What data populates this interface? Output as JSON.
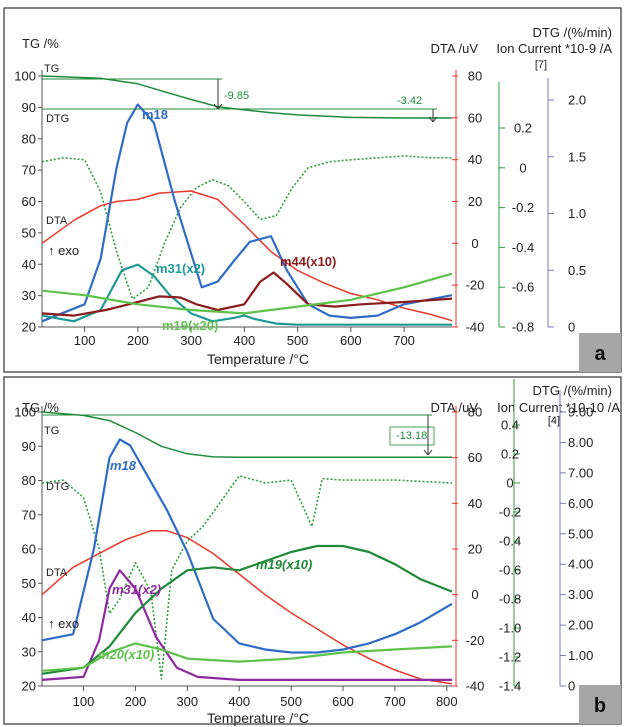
{
  "colors": {
    "tg": "#1f8a3a",
    "dtg": "#2e9e3e",
    "dta": "#e8392b",
    "m18": "#2f6cc6",
    "m31": "#1e9a96",
    "m44": "#8b1c1c",
    "m19_a": "#5cc24a",
    "m19_b": "#1f8a3a",
    "m31_b": "#8e2aa0",
    "m20": "#5cc24a",
    "badge": "#a6a6a6"
  },
  "chart_data": [
    {
      "type": "line",
      "panel": "a",
      "xlabel": "Temperature /°C",
      "xticks": [
        "100",
        "200",
        "300",
        "400",
        "500",
        "600",
        "700"
      ],
      "xlim": [
        20,
        790
      ],
      "tg_axis": {
        "label": "TG /%",
        "ticks": [
          "100",
          "90",
          "80",
          "70",
          "60",
          "50",
          "40",
          "30",
          "20"
        ],
        "ylim": [
          20,
          100
        ]
      },
      "dta_axis": {
        "label": "DTA /uV",
        "ticks": [
          "80",
          "60",
          "40",
          "20",
          "0",
          "-20",
          "-40"
        ],
        "ylim": [
          -40,
          80
        ]
      },
      "dtg_axis": {
        "label": "DTG /(%/min)",
        "ticks": [
          "0.2",
          "0",
          "-0.2",
          "-0.4",
          "-0.6",
          "-0.8"
        ],
        "ylim": [
          -0.8,
          0.2
        ]
      },
      "ion_axis": {
        "label": "Ion Current *10-9 /A",
        "bracket": "[7]",
        "ticks": [
          "2.0",
          "1.5",
          "1.0",
          "0.5",
          "0"
        ],
        "ylim": [
          0,
          2.0
        ]
      },
      "labels": {
        "tg": "TG",
        "dtg": "DTG",
        "dta": "DTA",
        "exo": "↑ exo"
      },
      "steps": [
        "-9.85",
        "-3.42"
      ],
      "badge": "a",
      "series": [
        {
          "name": "TG",
          "axis": "tg",
          "x": [
            20,
            130,
            200,
            260,
            300,
            350,
            400,
            450,
            500,
            600,
            700,
            790
          ],
          "values": [
            100,
            99.3,
            97.5,
            94.5,
            92.5,
            90.2,
            89.2,
            88.3,
            87.6,
            86.8,
            86.6,
            86.6
          ]
        },
        {
          "name": "DTG",
          "axis": "dtg",
          "dotted": true,
          "x": [
            20,
            60,
            100,
            130,
            160,
            190,
            220,
            250,
            280,
            310,
            340,
            370,
            400,
            430,
            460,
            490,
            520,
            560,
            600,
            650,
            700,
            750,
            790
          ],
          "values": [
            0.03,
            0.05,
            0.04,
            -0.12,
            -0.42,
            -0.66,
            -0.6,
            -0.38,
            -0.2,
            -0.1,
            -0.06,
            -0.09,
            -0.17,
            -0.26,
            -0.24,
            -0.1,
            0.0,
            0.03,
            0.04,
            0.05,
            0.06,
            0.05,
            0.05
          ]
        },
        {
          "name": "DTA",
          "axis": "dta",
          "x": [
            20,
            80,
            130,
            160,
            200,
            240,
            300,
            350,
            400,
            450,
            500,
            550,
            600,
            650,
            700,
            750,
            790
          ],
          "values": [
            0,
            11,
            18,
            20,
            21,
            24,
            25,
            21,
            9,
            -4,
            -13,
            -19,
            -24,
            -27,
            -31,
            -34,
            -37
          ]
        },
        {
          "name": "m18",
          "axis": "ion",
          "x": [
            20,
            100,
            130,
            160,
            180,
            200,
            230,
            270,
            320,
            350,
            380,
            410,
            450,
            480,
            520,
            560,
            600,
            650,
            700,
            790
          ],
          "values": [
            0.05,
            0.2,
            0.6,
            1.4,
            1.8,
            1.96,
            1.8,
            1.1,
            0.35,
            0.4,
            0.58,
            0.75,
            0.8,
            0.5,
            0.2,
            0.1,
            0.08,
            0.1,
            0.2,
            0.28
          ]
        },
        {
          "name": "m31(x2)",
          "axis": "ion",
          "x": [
            20,
            80,
            130,
            170,
            200,
            230,
            260,
            300,
            340,
            380,
            400,
            420,
            460,
            500,
            600,
            790
          ],
          "values": [
            0.1,
            0.05,
            0.15,
            0.5,
            0.55,
            0.45,
            0.28,
            0.12,
            0.05,
            0.08,
            0.1,
            0.07,
            0.03,
            0.02,
            0.02,
            0.02
          ]
        },
        {
          "name": "m44(x10)",
          "axis": "ion",
          "x": [
            20,
            80,
            140,
            200,
            240,
            280,
            310,
            350,
            400,
            430,
            455,
            480,
            520,
            570,
            620,
            700,
            790
          ],
          "values": [
            0.12,
            0.1,
            0.15,
            0.22,
            0.27,
            0.26,
            0.2,
            0.15,
            0.2,
            0.4,
            0.48,
            0.38,
            0.2,
            0.18,
            0.2,
            0.22,
            0.25
          ]
        },
        {
          "name": "m19(x20)",
          "axis": "ion",
          "x": [
            20,
            100,
            200,
            300,
            400,
            500,
            600,
            700,
            790
          ],
          "values": [
            0.32,
            0.28,
            0.2,
            0.15,
            0.12,
            0.18,
            0.24,
            0.35,
            0.47
          ]
        }
      ]
    },
    {
      "type": "line",
      "panel": "b",
      "xlabel": "Temperature /°C",
      "xticks": [
        "100",
        "200",
        "300",
        "400",
        "500",
        "600",
        "700",
        "800"
      ],
      "xlim": [
        20,
        810
      ],
      "tg_axis": {
        "label": "TG /%",
        "ticks": [
          "100",
          "90",
          "80",
          "70",
          "60",
          "50",
          "40",
          "30",
          "20"
        ],
        "ylim": [
          20,
          100
        ]
      },
      "dta_axis": {
        "label": "DTA /uV",
        "ticks": [
          "80",
          "60",
          "40",
          "20",
          "0",
          "-20",
          "-40"
        ],
        "ylim": [
          -40,
          80
        ]
      },
      "dtg_axis": {
        "label": "DTG /(%/min)",
        "ticks": [
          "0.4",
          "0.2",
          "0",
          "-0.2",
          "-0.4",
          "-0.6",
          "-0.8",
          "-1.0",
          "-1.2",
          "-1.4"
        ],
        "ylim": [
          -1.4,
          0.4
        ]
      },
      "ion_axis": {
        "label": "Ion Current *10-10 /A",
        "bracket": "[4]",
        "ticks": [
          "9.00",
          "8.00",
          "7.00",
          "6.00",
          "5.00",
          "4.00",
          "3.00",
          "2.00",
          "1.00",
          "0"
        ],
        "ylim": [
          0,
          9.0
        ]
      },
      "labels": {
        "tg": "TG",
        "dtg": "DTG",
        "dta": "DTA",
        "exo": "↑ exo"
      },
      "steps": [
        "-13.18"
      ],
      "badge": "b",
      "series": [
        {
          "name": "TG",
          "axis": "tg",
          "x": [
            20,
            100,
            150,
            200,
            250,
            300,
            350,
            400,
            500,
            600,
            700,
            810
          ],
          "values": [
            100,
            99,
            97.5,
            94,
            90,
            87.8,
            86.9,
            86.8,
            86.8,
            86.8,
            86.8,
            86.8
          ]
        },
        {
          "name": "DTG",
          "axis": "dtg",
          "dotted": true,
          "x": [
            20,
            60,
            100,
            130,
            150,
            170,
            200,
            230,
            250,
            270,
            300,
            330,
            360,
            380,
            400,
            450,
            500,
            540,
            560,
            600,
            700,
            810
          ],
          "values": [
            0.0,
            0.02,
            -0.1,
            -0.45,
            -0.9,
            -0.8,
            -0.55,
            -0.75,
            -1.35,
            -0.6,
            -0.4,
            -0.3,
            -0.15,
            -0.05,
            0.05,
            0.0,
            0.02,
            -0.3,
            0.03,
            0.02,
            0.02,
            0.0
          ]
        },
        {
          "name": "DTA",
          "axis": "dta",
          "x": [
            20,
            80,
            130,
            180,
            230,
            260,
            300,
            350,
            400,
            450,
            500,
            550,
            600,
            650,
            700,
            750,
            810
          ],
          "values": [
            0,
            12,
            18,
            24,
            28,
            28,
            25,
            18,
            9,
            0,
            -8,
            -15,
            -22,
            -28,
            -33,
            -37,
            -39
          ]
        },
        {
          "name": "m18",
          "axis": "ion",
          "x": [
            20,
            80,
            120,
            150,
            170,
            190,
            220,
            260,
            300,
            350,
            400,
            450,
            500,
            550,
            600,
            650,
            700,
            750,
            810
          ],
          "values": [
            1.5,
            1.7,
            4.5,
            7.5,
            8.1,
            7.9,
            7.0,
            5.8,
            4.4,
            2.2,
            1.4,
            1.2,
            1.1,
            1.1,
            1.2,
            1.4,
            1.7,
            2.1,
            2.7
          ]
        },
        {
          "name": "m31(x2)",
          "axis": "ion",
          "x": [
            20,
            100,
            130,
            150,
            170,
            200,
            240,
            280,
            320,
            400,
            500,
            810
          ],
          "values": [
            0.2,
            0.3,
            1.5,
            3.2,
            3.8,
            3.2,
            1.6,
            0.6,
            0.3,
            0.2,
            0.2,
            0.2
          ]
        },
        {
          "name": "m19(x10)",
          "axis": "ion",
          "x": [
            20,
            100,
            150,
            200,
            250,
            300,
            350,
            400,
            450,
            500,
            550,
            600,
            650,
            700,
            750,
            810
          ],
          "values": [
            0.4,
            0.6,
            1.3,
            2.4,
            3.2,
            3.8,
            3.9,
            3.8,
            4.1,
            4.4,
            4.6,
            4.6,
            4.4,
            4.0,
            3.5,
            3.1
          ]
        },
        {
          "name": "m20(x10)",
          "axis": "ion",
          "x": [
            20,
            100,
            150,
            200,
            250,
            300,
            400,
            500,
            600,
            700,
            810
          ],
          "values": [
            0.5,
            0.6,
            1.1,
            1.4,
            1.2,
            0.9,
            0.8,
            0.9,
            1.1,
            1.2,
            1.3
          ]
        }
      ]
    }
  ]
}
